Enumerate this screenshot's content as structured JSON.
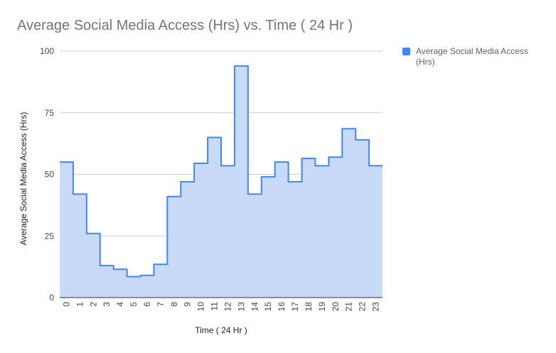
{
  "chart_data": {
    "type": "area",
    "title": "Average Social Media Access (Hrs) vs. Time ( 24 Hr )",
    "xlabel": "Time ( 24 Hr )",
    "ylabel": "Average Social Media Access (Hrs)",
    "ylim": [
      0,
      100
    ],
    "yticks": [
      "0",
      "25",
      "50",
      "75",
      "100"
    ],
    "grid": true,
    "legend_position": "right",
    "categories": [
      "0",
      "1",
      "2",
      "3",
      "4",
      "5",
      "6",
      "7",
      "8",
      "9",
      "10",
      "11",
      "12",
      "13",
      "14",
      "15",
      "16",
      "17",
      "18",
      "19",
      "20",
      "21",
      "22",
      "23"
    ],
    "series": [
      {
        "name": "Average Social Media Access (Hrs)",
        "values": [
          55,
          42,
          26,
          13,
          11.5,
          8.5,
          9,
          13.5,
          41,
          47,
          54.5,
          65,
          53.5,
          94,
          42,
          49,
          55,
          47,
          56.5,
          53.5,
          57,
          68.5,
          64,
          53.5
        ],
        "color": "#4285f4",
        "fill": "#c9daf8"
      }
    ]
  }
}
